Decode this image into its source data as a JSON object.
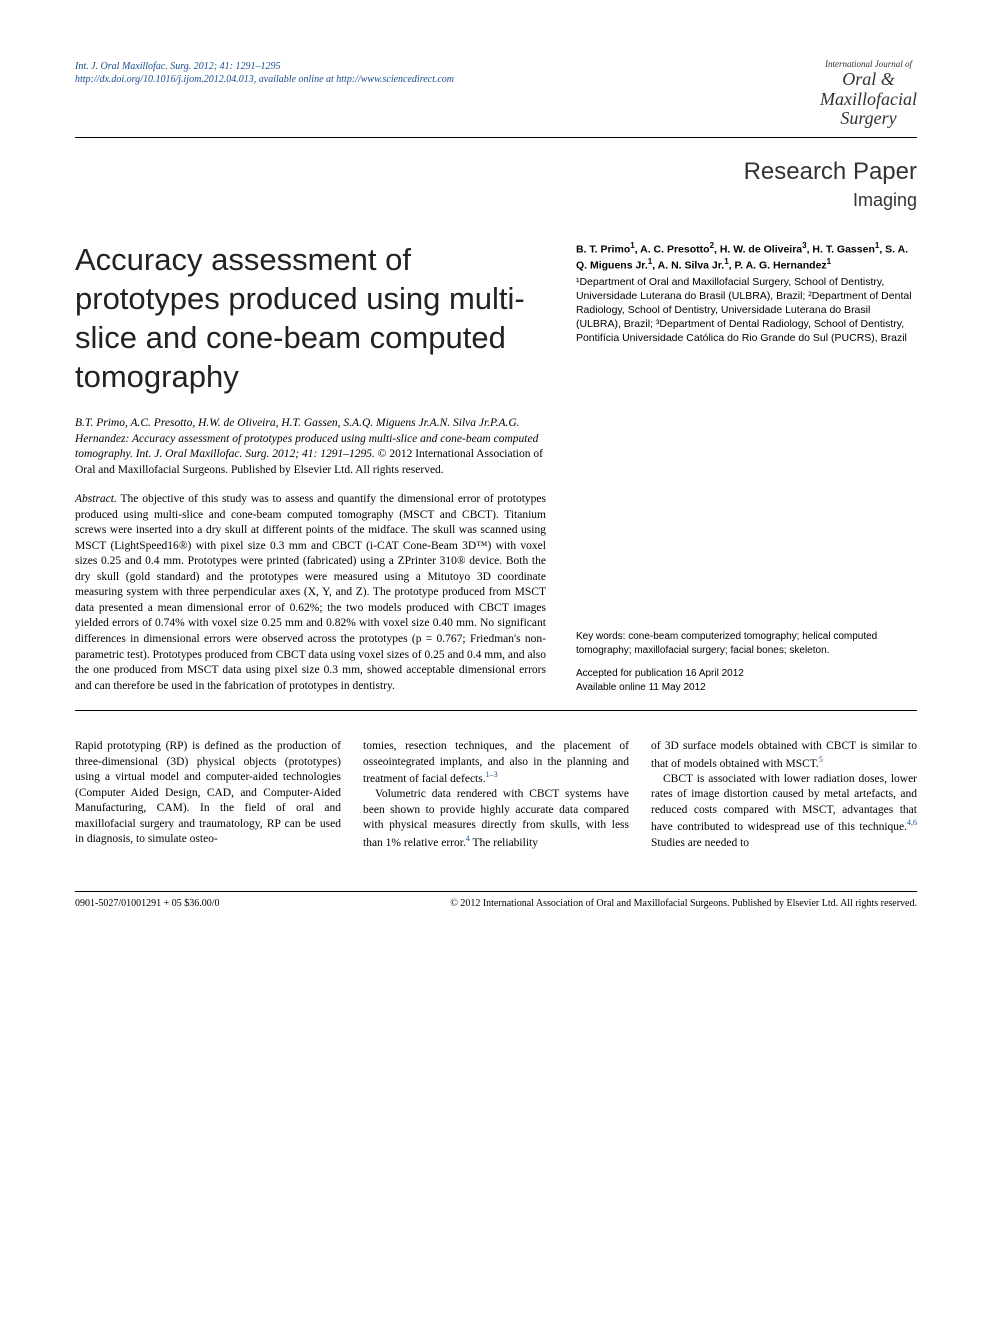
{
  "header": {
    "journal_ref_line1": "Int. J. Oral Maxillofac. Surg. 2012; 41: 1291–1295",
    "doi_url": "http://dx.doi.org/10.1016/j.ijom.2012.04.013",
    "online_text": ", available online at http://www.sciencedirect.com",
    "logo_small": "International Journal of",
    "logo_line1": "Oral &",
    "logo_line2": "Maxillofacial",
    "logo_line3": "Surgery"
  },
  "paper_type": {
    "label": "Research Paper",
    "category": "Imaging"
  },
  "title": "Accuracy assessment of prototypes produced using multi-slice and cone-beam computed tomography",
  "authors": {
    "names_html": "B. T. Primo<sup>1</sup>, A. C. Presotto<sup>2</sup>, H. W. de Oliveira<sup>3</sup>, H. T. Gassen<sup>1</sup>, S. A. Q. Miguens Jr.<sup>1</sup>, A. N. Silva Jr.<sup>1</sup>, P. A. G. Hernandez<sup>1</sup>",
    "affiliations": "¹Department of Oral and Maxillofacial Surgery, School of Dentistry, Universidade Luterana do Brasil (ULBRA), Brazil; ²Department of Dental Radiology, School of Dentistry, Universidade Luterana do Brasil (ULBRA), Brazil; ³Department of Dental Radiology, School of Dentistry, Pontifícia Universidade Católica do Rio Grande do Sul (PUCRS), Brazil"
  },
  "citation": {
    "authors": "B.T. Primo, A.C. Presotto, H.W. de Oliveira, H.T. Gassen, S.A.Q. Miguens Jr.A.N. Silva Jr.P.A.G. Hernandez:",
    "title": "Accuracy assessment of prototypes produced using multi-slice and cone-beam computed tomography. Int. J. Oral Maxillofac. Surg. 2012; 41: 1291–1295.",
    "copyright": "© 2012 International Association of Oral and Maxillofacial Surgeons. Published by Elsevier Ltd. All rights reserved."
  },
  "abstract": {
    "label": "Abstract.",
    "text": "The objective of this study was to assess and quantify the dimensional error of prototypes produced using multi-slice and cone-beam computed tomography (MSCT and CBCT). Titanium screws were inserted into a dry skull at different points of the midface. The skull was scanned using MSCT (LightSpeed16®) with pixel size 0.3 mm and CBCT (i-CAT Cone-Beam 3D™) with voxel sizes 0.25 and 0.4 mm. Prototypes were printed (fabricated) using a ZPrinter 310® device. Both the dry skull (gold standard) and the prototypes were measured using a Mitutoyo 3D coordinate measuring system with three perpendicular axes (X, Y, and Z). The prototype produced from MSCT data presented a mean dimensional error of 0.62%; the two models produced with CBCT images yielded errors of 0.74% with voxel size 0.25 mm and 0.82% with voxel size 0.40 mm. No significant differences in dimensional errors were observed across the prototypes (p = 0.767; Friedman's non-parametric test). Prototypes produced from CBCT data using voxel sizes of 0.25 and 0.4 mm, and also the one produced from MSCT data using pixel size 0.3 mm, showed acceptable dimensional errors and can therefore be used in the fabrication of prototypes in dentistry."
  },
  "keywords": {
    "label": "Key words:",
    "text": "cone-beam computerized tomography; helical computed tomography; maxillofacial surgery; facial bones; skeleton.",
    "accepted": "Accepted for publication 16 April 2012",
    "online": "Available online 11 May 2012"
  },
  "body": {
    "col1": "Rapid prototyping (RP) is defined as the production of three-dimensional (3D) physical objects (prototypes) using a virtual model and computer-aided technologies (Computer Aided Design, CAD, and Computer-Aided Manufacturing, CAM). In the field of oral and maxillofacial surgery and traumatology, RP can be used in diagnosis, to simulate osteo-",
    "col2_p1": "tomies, resection techniques, and the placement of osseointegrated implants, and also in the planning and treatment of facial defects.",
    "col2_ref1": "1–3",
    "col2_p2": "Volumetric data rendered with CBCT systems have been shown to provide highly accurate data compared with physical measures directly from skulls, with less than 1% relative error.",
    "col2_ref2": "4",
    "col2_p2_tail": " The reliability",
    "col3_p1": "of 3D surface models obtained with CBCT is similar to that of models obtained with MSCT.",
    "col3_ref1": "5",
    "col3_p2": "CBCT is associated with lower radiation doses, lower rates of image distortion caused by metal artefacts, and reduced costs compared with MSCT, advantages that have contributed to widespread use of this technique.",
    "col3_ref2": "4,6",
    "col3_p2_tail": " Studies are needed to"
  },
  "footer": {
    "left": "0901-5027/01001291 + 05 $36.00/0",
    "right": "© 2012 International Association of Oral and Maxillofacial Surgeons. Published by Elsevier Ltd. All rights reserved."
  }
}
